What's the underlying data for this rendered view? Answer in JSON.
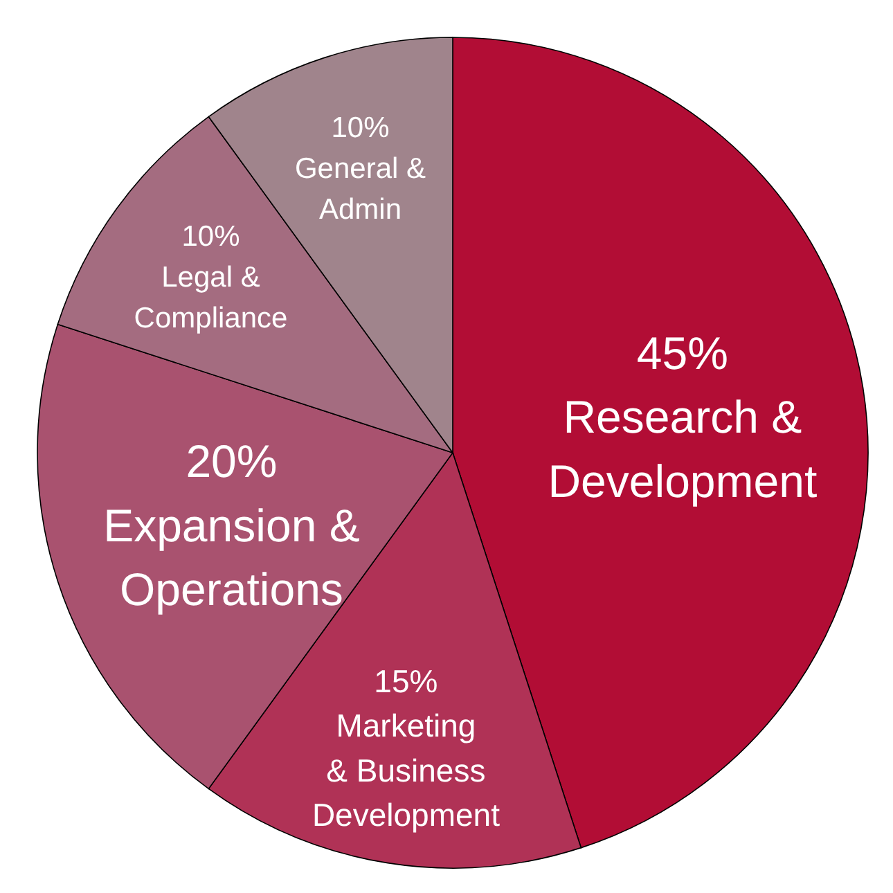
{
  "chart_data": {
    "type": "pie",
    "categories": [
      "Research &\nDevelopment",
      "Marketing\n& Business\nDevelopment",
      "Expansion &\nOperations",
      "Legal &\nCompliance",
      "General &\nAdmin"
    ],
    "values": [
      45,
      15,
      20,
      10,
      10
    ],
    "value_labels": [
      "45%",
      "15%",
      "20%",
      "10%",
      "10%"
    ],
    "colors": [
      "#b20d35",
      "#b03256",
      "#a9526f",
      "#a46c80",
      "#a0848c"
    ],
    "data_labels": true,
    "legend": false
  }
}
